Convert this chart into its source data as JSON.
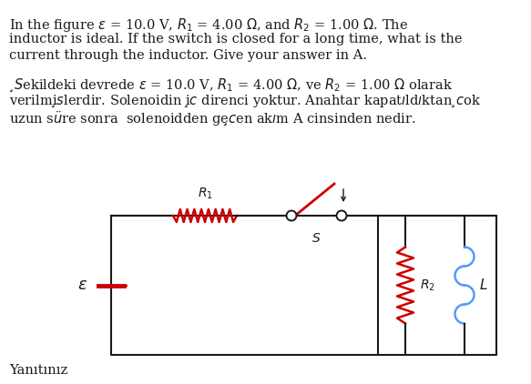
{
  "background_color": "#ffffff",
  "text_color": "#1a1a1a",
  "R1_color": "#cc0000",
  "R2_color": "#cc0000",
  "L_color": "#5599ff",
  "switch_color": "#cc0000",
  "wire_color": "#1a1a1a",
  "battery_color": "#cc0000",
  "en_line1": "In the figure $\\varepsilon$ = 10.0 V, $R_1$ = 4.00 $\\Omega$, and $R_2$ = 1.00 $\\Omega$. The",
  "en_line2": "inductor is ideal. If the switch is closed for a long time, what is the",
  "en_line3": "current through the inductor. Give your answer in A.",
  "tr_line1": "$\\c{S}$ekildeki devrede $\\varepsilon$ = 10.0 V, $R_1$ = 4.00 $\\Omega$, ve $R_2$ = 1.00 $\\Omega$ olarak",
  "tr_line2": "verilmi$\\c{s}$lerdir. Solenoidin i$\\c{c}$ direnci yoktur. Anahtar kapat$\\i$ld$\\i$ktan $\\c{c}$ok",
  "tr_line3": "uzun s$\\ddot{u}$re sonra  solenoidden ge$\\c{c}$en ak$\\i$m A cinsinden nedir.",
  "footer": "Yanıtınız",
  "fontsize_text": 10.0,
  "fontsize_label": 9.5
}
